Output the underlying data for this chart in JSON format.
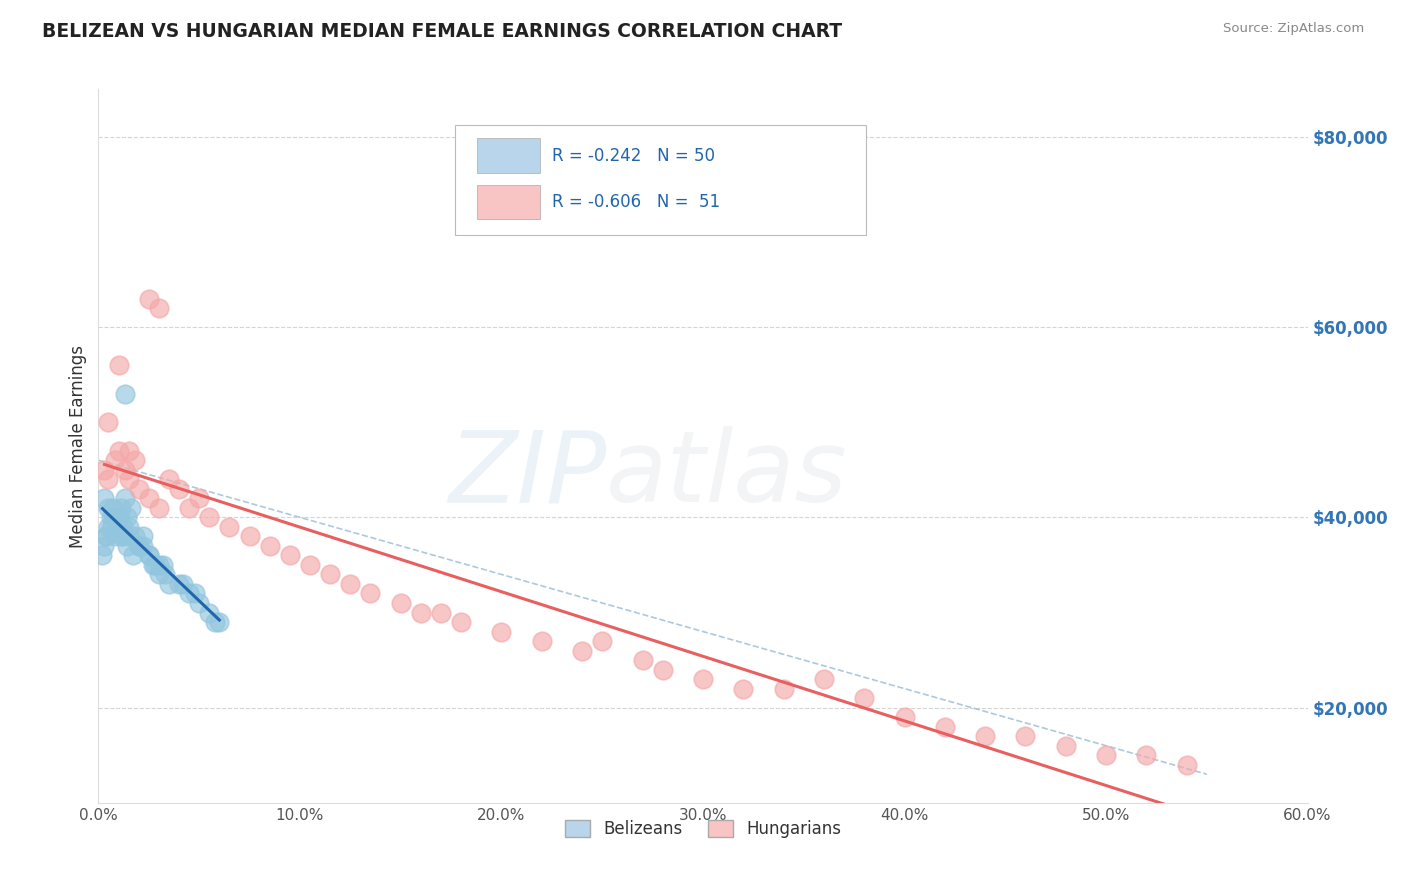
{
  "title": "BELIZEAN VS HUNGARIAN MEDIAN FEMALE EARNINGS CORRELATION CHART",
  "source": "Source: ZipAtlas.com",
  "ylabel": "Median Female Earnings",
  "y_ticks": [
    20000,
    40000,
    60000,
    80000
  ],
  "x_min": 0.0,
  "x_max": 60.0,
  "y_min": 10000,
  "y_max": 85000,
  "belizean_R": -0.242,
  "belizean_N": 50,
  "hungarian_R": -0.606,
  "hungarian_N": 51,
  "belizean_color": "#92c5de",
  "hungarian_color": "#f4a8a8",
  "belizean_line_color": "#2166ac",
  "hungarian_line_color": "#e85f5f",
  "legend_belizean_fill": "#b8d5ec",
  "legend_hungarian_fill": "#f9c4c4",
  "watermark_zip_color": "#7ab3d8",
  "watermark_atlas_color": "#b0b8c0",
  "background_color": "#ffffff",
  "grid_color": "#d0d0d0",
  "title_color": "#222222",
  "axis_tick_color": "#555555",
  "y_label_color": "#3375b5",
  "belizean_x": [
    0.2,
    0.3,
    0.4,
    0.5,
    0.6,
    0.7,
    0.8,
    0.9,
    1.0,
    1.1,
    1.2,
    1.3,
    1.4,
    1.5,
    1.6,
    1.8,
    2.0,
    2.2,
    2.5,
    2.8,
    3.0,
    3.2,
    3.5,
    4.0,
    4.5,
    5.0,
    5.5,
    6.0,
    0.3,
    0.5,
    0.7,
    1.0,
    1.2,
    1.5,
    2.0,
    2.5,
    3.0,
    0.4,
    0.6,
    0.8,
    1.1,
    1.4,
    1.7,
    2.2,
    2.7,
    3.3,
    4.2,
    4.8,
    1.3,
    5.8
  ],
  "belizean_y": [
    36000,
    37000,
    38000,
    39000,
    40000,
    41000,
    38000,
    39000,
    40000,
    41000,
    38000,
    42000,
    40000,
    39000,
    41000,
    38000,
    37000,
    38000,
    36000,
    35000,
    34000,
    35000,
    33000,
    33000,
    32000,
    31000,
    30000,
    29000,
    42000,
    41000,
    40000,
    40000,
    39000,
    38000,
    37000,
    36000,
    35000,
    38000,
    39000,
    40000,
    38000,
    37000,
    36000,
    37000,
    35000,
    34000,
    33000,
    32000,
    53000,
    29000
  ],
  "hungarian_x": [
    0.3,
    0.5,
    0.8,
    1.0,
    1.3,
    1.5,
    1.8,
    2.0,
    2.5,
    3.0,
    3.5,
    4.0,
    4.5,
    5.0,
    5.5,
    6.5,
    7.5,
    8.5,
    9.5,
    10.5,
    11.5,
    12.5,
    13.5,
    15.0,
    16.0,
    17.0,
    18.0,
    20.0,
    22.0,
    24.0,
    25.0,
    27.0,
    28.0,
    30.0,
    32.0,
    34.0,
    36.0,
    38.0,
    40.0,
    42.0,
    44.0,
    46.0,
    48.0,
    50.0,
    52.0,
    54.0,
    3.0,
    2.5,
    1.5,
    1.0,
    0.5
  ],
  "hungarian_y": [
    45000,
    44000,
    46000,
    47000,
    45000,
    44000,
    46000,
    43000,
    42000,
    41000,
    44000,
    43000,
    41000,
    42000,
    40000,
    39000,
    38000,
    37000,
    36000,
    35000,
    34000,
    33000,
    32000,
    31000,
    30000,
    30000,
    29000,
    28000,
    27000,
    26000,
    27000,
    25000,
    24000,
    23000,
    22000,
    22000,
    23000,
    21000,
    19000,
    18000,
    17000,
    17000,
    16000,
    15000,
    15000,
    14000,
    62000,
    63000,
    47000,
    56000,
    50000
  ],
  "dashed_line_x": [
    0.0,
    55.0
  ],
  "dashed_line_y": [
    46000,
    13000
  ]
}
